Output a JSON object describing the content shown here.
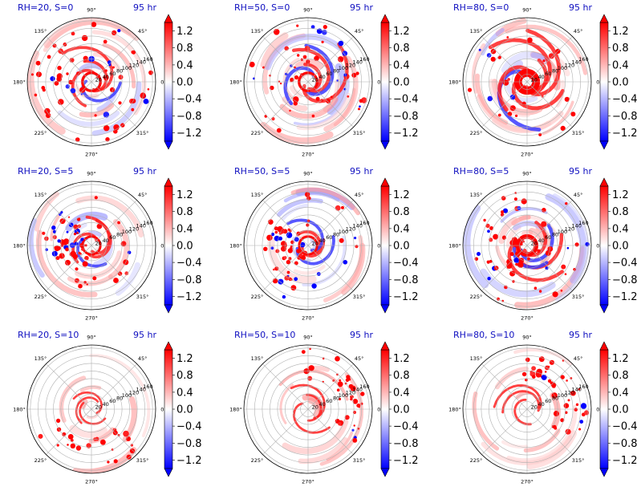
{
  "figure": {
    "time_label": "95 hr",
    "colors": {
      "positive": "#ff0000",
      "negative": "#0000ff",
      "title": "#1010c0",
      "grid": "#b0b0b0"
    }
  },
  "chart_data": [
    {
      "type": "heatmap",
      "projection": "polar",
      "title": "RH=20, S=0",
      "time": "95 hr",
      "rh": 20,
      "s": 0,
      "radial_ticks": [
        20,
        40,
        60,
        80,
        100,
        120,
        140,
        160
      ],
      "angle_ticks": [
        "0°",
        "45°",
        "90°",
        "135°",
        "180°",
        "225°",
        "270°",
        "315°"
      ],
      "colorbar": {
        "ticks": [
          1.2,
          0.8,
          0.4,
          0.0,
          -0.4,
          -0.8,
          -1.2
        ],
        "range": [
          -1.4,
          1.4
        ],
        "extend": "both",
        "cmap": "bwr"
      },
      "pattern": {
        "bands": 0.55,
        "cells": 0.9,
        "extent": 0.95,
        "core": 0.12,
        "bias": 0.0,
        "negative": 0.8
      }
    },
    {
      "type": "heatmap",
      "projection": "polar",
      "title": "RH=50, S=0",
      "time": "95 hr",
      "rh": 50,
      "s": 0,
      "radial_ticks": [
        20,
        40,
        60,
        80,
        100,
        120,
        140,
        160
      ],
      "angle_ticks": [
        "0°",
        "45°",
        "90°",
        "135°",
        "180°",
        "225°",
        "270°",
        "315°"
      ],
      "colorbar": {
        "ticks": [
          1.2,
          0.8,
          0.4,
          0.0,
          -0.4,
          -0.8,
          -1.2
        ],
        "range": [
          -1.4,
          1.4
        ],
        "extend": "both",
        "cmap": "bwr"
      },
      "pattern": {
        "bands": 0.75,
        "cells": 0.75,
        "extent": 0.95,
        "core": 0.12,
        "bias": 0.0,
        "negative": 0.7
      }
    },
    {
      "type": "heatmap",
      "projection": "polar",
      "title": "RH=80, S=0",
      "time": "95 hr",
      "rh": 80,
      "s": 0,
      "radial_ticks": [
        20,
        40,
        60,
        80,
        100,
        120,
        140,
        160
      ],
      "angle_ticks": [
        "0°",
        "45°",
        "90°",
        "135°",
        "180°",
        "225°",
        "270°",
        "315°"
      ],
      "colorbar": {
        "ticks": [
          1.2,
          0.8,
          0.4,
          0.0,
          -0.4,
          -0.8,
          -1.2
        ],
        "range": [
          -1.4,
          1.4
        ],
        "extend": "both",
        "cmap": "bwr"
      },
      "pattern": {
        "bands": 0.95,
        "cells": 0.3,
        "extent": 0.95,
        "core": 0.35,
        "bias": 0.0,
        "negative": 0.6
      }
    },
    {
      "type": "heatmap",
      "projection": "polar",
      "title": "RH=20, S=5",
      "time": "95 hr",
      "rh": 20,
      "s": 5,
      "radial_ticks": [
        20,
        40,
        60,
        80,
        100,
        120,
        140,
        160
      ],
      "angle_ticks": [
        "0°",
        "45°",
        "90°",
        "135°",
        "180°",
        "225°",
        "270°",
        "315°"
      ],
      "colorbar": {
        "ticks": [
          1.2,
          0.8,
          0.4,
          0.0,
          -0.4,
          -0.8,
          -1.2
        ],
        "range": [
          -1.4,
          1.4
        ],
        "extend": "both",
        "cmap": "bwr"
      },
      "pattern": {
        "bands": 0.55,
        "cells": 0.85,
        "extent": 0.75,
        "core": 0.1,
        "bias": 0.6,
        "negative": 0.8
      }
    },
    {
      "type": "heatmap",
      "projection": "polar",
      "title": "RH=50, S=5",
      "time": "95 hr",
      "rh": 50,
      "s": 5,
      "radial_ticks": [
        20,
        40,
        60,
        80,
        100,
        120,
        140,
        160
      ],
      "angle_ticks": [
        "0°",
        "45°",
        "90°",
        "135°",
        "180°",
        "225°",
        "270°",
        "315°"
      ],
      "colorbar": {
        "ticks": [
          1.2,
          0.8,
          0.4,
          0.0,
          -0.4,
          -0.8,
          -1.2
        ],
        "range": [
          -1.4,
          1.4
        ],
        "extend": "both",
        "cmap": "bwr"
      },
      "pattern": {
        "bands": 0.6,
        "cells": 0.9,
        "extent": 0.9,
        "core": 0.1,
        "bias": 0.7,
        "negative": 0.9
      }
    },
    {
      "type": "heatmap",
      "projection": "polar",
      "title": "RH=80, S=5",
      "time": "95 hr",
      "rh": 80,
      "s": 5,
      "radial_ticks": [
        20,
        40,
        60,
        80,
        100,
        120,
        140,
        160
      ],
      "angle_ticks": [
        "0°",
        "45°",
        "90°",
        "135°",
        "180°",
        "225°",
        "270°",
        "315°"
      ],
      "colorbar": {
        "ticks": [
          1.2,
          0.8,
          0.4,
          0.0,
          -0.4,
          -0.8,
          -1.2
        ],
        "range": [
          -1.4,
          1.4
        ],
        "extend": "both",
        "cmap": "bwr"
      },
      "pattern": {
        "bands": 0.8,
        "cells": 0.9,
        "extent": 0.95,
        "core": 0.2,
        "bias": 0.3,
        "negative": 0.9
      }
    },
    {
      "type": "heatmap",
      "projection": "polar",
      "title": "RH=20, S=10",
      "time": "95 hr",
      "rh": 20,
      "s": 10,
      "radial_ticks": [
        20,
        40,
        60,
        80,
        100,
        120,
        140,
        160
      ],
      "angle_ticks": [
        "0°",
        "45°",
        "90°",
        "135°",
        "180°",
        "225°",
        "270°",
        "315°"
      ],
      "colorbar": {
        "ticks": [
          1.2,
          0.8,
          0.4,
          0.0,
          -0.4,
          -0.8,
          -1.2
        ],
        "range": [
          -1.4,
          1.4
        ],
        "extend": "both",
        "cmap": "bwr"
      },
      "pattern": {
        "bands": 0.2,
        "cells": 0.25,
        "extent": 0.95,
        "core": 0.0,
        "bias": 0.0,
        "negative": 0.2
      }
    },
    {
      "type": "heatmap",
      "projection": "polar",
      "title": "RH=50, S=10",
      "time": "95 hr",
      "rh": 50,
      "s": 10,
      "radial_ticks": [
        20,
        40,
        60,
        80,
        100,
        120,
        140,
        160
      ],
      "angle_ticks": [
        "0°",
        "45°",
        "90°",
        "135°",
        "180°",
        "225°",
        "270°",
        "315°"
      ],
      "colorbar": {
        "ticks": [
          1.2,
          0.8,
          0.4,
          0.0,
          -0.4,
          -0.8,
          -1.2
        ],
        "range": [
          -1.4,
          1.4
        ],
        "extend": "both",
        "cmap": "bwr"
      },
      "pattern": {
        "bands": 0.25,
        "cells": 0.45,
        "extent": 0.95,
        "core": 0.0,
        "bias": 0.0,
        "negative": 0.35
      }
    },
    {
      "type": "heatmap",
      "projection": "polar",
      "title": "RH=80, S=10",
      "time": "95 hr",
      "rh": 80,
      "s": 10,
      "radial_ticks": [
        20,
        40,
        60,
        80,
        100,
        120,
        140,
        160
      ],
      "angle_ticks": [
        "0°",
        "45°",
        "90°",
        "135°",
        "180°",
        "225°",
        "270°",
        "315°"
      ],
      "colorbar": {
        "ticks": [
          1.2,
          0.8,
          0.4,
          0.0,
          -0.4,
          -0.8,
          -1.2
        ],
        "range": [
          -1.4,
          1.4
        ],
        "extend": "both",
        "cmap": "bwr"
      },
      "pattern": {
        "bands": 0.3,
        "cells": 0.6,
        "extent": 0.95,
        "core": 0.0,
        "bias": 0.0,
        "negative": 0.4
      }
    }
  ]
}
